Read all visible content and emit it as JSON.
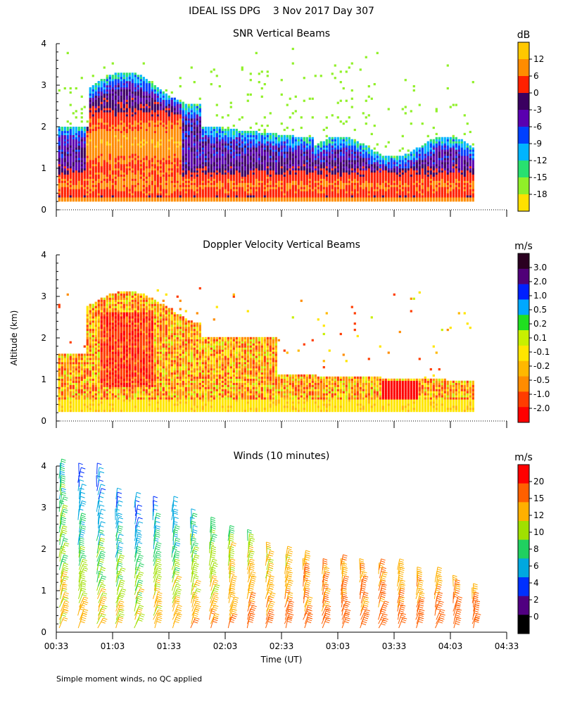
{
  "header": {
    "title": "IDEAL ISS DPG    3 Nov 2017 Day 307"
  },
  "footnote": "Simple moment winds, no QC applied",
  "shared": {
    "ylabel": "Altitude (km)",
    "xlabel": "Time (UT)",
    "x_ticks": [
      "00:33",
      "01:03",
      "01:33",
      "02:03",
      "02:33",
      "03:03",
      "03:33",
      "04:03",
      "04:33"
    ],
    "y_ticks": [
      "0",
      "1",
      "2",
      "3",
      "4"
    ],
    "xlim_minutes_utc": [
      33,
      273
    ],
    "ylim_km": [
      0,
      4
    ]
  },
  "chart_data": [
    {
      "type": "heatmap",
      "title": "SNR Vertical Beams",
      "xlabel": "Time (UT)",
      "ylabel": "Altitude (km)",
      "ylim": [
        0,
        4
      ],
      "colorbar": {
        "unit": "dB",
        "labels": [
          "12",
          "6",
          "0",
          "-3",
          "-6",
          "-9",
          "-12",
          "-15",
          "-18"
        ],
        "colors": [
          "#ffc800",
          "#ff8c00",
          "#ff2000",
          "#3a0060",
          "#5a00b0",
          "#0040ff",
          "#00b4ff",
          "#28e070",
          "#90f028",
          "#ffe000"
        ]
      },
      "profile_note": "strongest returns (>0 dB) near 0.3-1.2 km, up to 2.6 km around 00:50-01:15 UT; weak returns scattered to ~3.8 km"
    },
    {
      "type": "heatmap",
      "title": "Doppler Velocity Vertical Beams",
      "xlabel": "Time (UT)",
      "ylabel": "Altitude (km)",
      "ylim": [
        0,
        4
      ],
      "colorbar": {
        "unit": "m/s",
        "labels": [
          "3.0",
          "2.0",
          "1.0",
          "0.5",
          "0.2",
          "0.1",
          "-0.1",
          "-0.2",
          "-0.5",
          "-1.0",
          "-2.0"
        ],
        "colors": [
          "#2a0020",
          "#500078",
          "#0020ff",
          "#00a8ff",
          "#20e020",
          "#c8f000",
          "#ffe600",
          "#ffb800",
          "#ff8c00",
          "#ff3c00",
          "#ff0000"
        ]
      },
      "profile_note": "mostly -0.1 to -0.5 m/s below 1.5 km; downward up to -2.0 m/s near 03:15-03:35 UT around 0.5 km"
    },
    {
      "type": "scatter",
      "title": "Winds (10 minutes)",
      "xlabel": "Time (UT)",
      "ylabel": "Altitude (km)",
      "ylim": [
        0,
        4
      ],
      "colorbar": {
        "unit": "m/s",
        "labels": [
          "20",
          "15",
          "12",
          "10",
          "8",
          "6",
          "4",
          "2",
          "0"
        ],
        "colors": [
          "#ff0000",
          "#ff6000",
          "#ffb000",
          "#a0e000",
          "#20d060",
          "#00a8e0",
          "#0030ff",
          "#500080",
          "#000000"
        ]
      },
      "wind_profiles": [
        {
          "time_min": 35,
          "top_km": 4.0,
          "low_speed": 13,
          "high_speed": 8
        },
        {
          "time_min": 45,
          "top_km": 3.9,
          "low_speed": 13,
          "high_speed": 5
        },
        {
          "time_min": 55,
          "top_km": 3.9,
          "low_speed": 13,
          "high_speed": 5
        },
        {
          "time_min": 65,
          "top_km": 3.3,
          "low_speed": 13,
          "high_speed": 5
        },
        {
          "time_min": 75,
          "top_km": 3.2,
          "low_speed": 13,
          "high_speed": 5
        },
        {
          "time_min": 85,
          "top_km": 3.1,
          "low_speed": 14,
          "high_speed": 6
        },
        {
          "time_min": 95,
          "top_km": 3.1,
          "low_speed": 14,
          "high_speed": 6
        },
        {
          "time_min": 105,
          "top_km": 2.8,
          "low_speed": 15,
          "high_speed": 7
        },
        {
          "time_min": 115,
          "top_km": 2.6,
          "low_speed": 15,
          "high_speed": 8
        },
        {
          "time_min": 125,
          "top_km": 2.4,
          "low_speed": 15,
          "high_speed": 10
        },
        {
          "time_min": 135,
          "top_km": 2.3,
          "low_speed": 16,
          "high_speed": 10
        },
        {
          "time_min": 145,
          "top_km": 2.0,
          "low_speed": 16,
          "high_speed": 11
        },
        {
          "time_min": 155,
          "top_km": 1.9,
          "low_speed": 17,
          "high_speed": 12
        },
        {
          "time_min": 165,
          "top_km": 1.8,
          "low_speed": 17,
          "high_speed": 13
        },
        {
          "time_min": 175,
          "top_km": 1.6,
          "low_speed": 17,
          "high_speed": 14
        },
        {
          "time_min": 185,
          "top_km": 1.7,
          "low_speed": 17,
          "high_speed": 14
        },
        {
          "time_min": 195,
          "top_km": 1.6,
          "low_speed": 17,
          "high_speed": 14
        },
        {
          "time_min": 205,
          "top_km": 1.6,
          "low_speed": 17,
          "high_speed": 14
        },
        {
          "time_min": 215,
          "top_km": 1.6,
          "low_speed": 17,
          "high_speed": 14
        },
        {
          "time_min": 225,
          "top_km": 1.4,
          "low_speed": 17,
          "high_speed": 14
        },
        {
          "time_min": 235,
          "top_km": 1.3,
          "low_speed": 17,
          "high_speed": 14
        },
        {
          "time_min": 245,
          "top_km": 1.1,
          "low_speed": 17,
          "high_speed": 14
        },
        {
          "time_min": 255,
          "top_km": 0.9,
          "low_speed": 18,
          "high_speed": 15
        }
      ]
    }
  ]
}
